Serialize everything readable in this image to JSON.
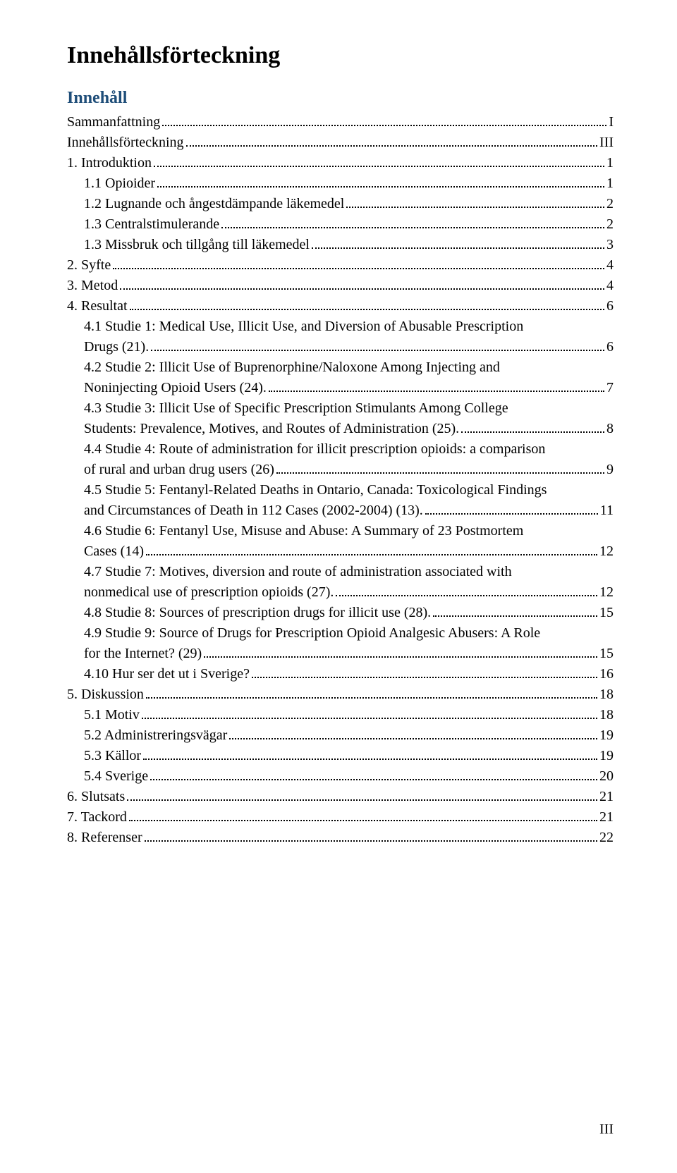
{
  "title": "Innehållsförteckning",
  "section_heading": "Innehåll",
  "page_number": "III",
  "toc": [
    {
      "label": "Sammanfattning",
      "page": "I",
      "indent": 0
    },
    {
      "label": "Innehållsförteckning",
      "page": "III",
      "indent": 0
    },
    {
      "label": "1. Introduktion",
      "page": "1",
      "indent": 0
    },
    {
      "label": "1.1 Opioider",
      "page": "1",
      "indent": 1
    },
    {
      "label": "1.2 Lugnande och ångestdämpande läkemedel",
      "page": "2",
      "indent": 1
    },
    {
      "label": "1.3 Centralstimulerande",
      "page": "2",
      "indent": 1
    },
    {
      "label": "1.3 Missbruk och tillgång till läkemedel",
      "page": "3",
      "indent": 1
    },
    {
      "label": "2. Syfte",
      "page": "4",
      "indent": 0
    },
    {
      "label": "3. Metod",
      "page": "4",
      "indent": 0
    },
    {
      "label": "4. Resultat",
      "page": "6",
      "indent": 0
    },
    {
      "label_lines": [
        "4.1 Studie 1: Medical Use, Illicit Use, and Diversion of Abusable Prescription"
      ],
      "cont": "Drugs (21).",
      "page": "6",
      "indent": 1
    },
    {
      "label_lines": [
        "4.2 Studie 2: Illicit Use of Buprenorphine/Naloxone Among Injecting and"
      ],
      "cont": "Noninjecting Opioid Users (24).",
      "page": "7",
      "indent": 1
    },
    {
      "label_lines": [
        "4.3 Studie 3: Illicit Use of Specific Prescription Stimulants Among College"
      ],
      "cont": "Students: Prevalence, Motives, and Routes of Administration (25).",
      "page": "8",
      "indent": 1
    },
    {
      "label_lines": [
        "4.4 Studie 4: Route of administration for illicit prescription opioids: a comparison"
      ],
      "cont": "of rural and urban drug users (26)",
      "page": "9",
      "indent": 1
    },
    {
      "label_lines": [
        "4.5  Studie 5: Fentanyl-Related Deaths in Ontario, Canada: Toxicological Findings"
      ],
      "cont": "and Circumstances of Death in 112 Cases (2002-2004) (13).",
      "page": "11",
      "indent": 1
    },
    {
      "label_lines": [
        "4.6 Studie 6: Fentanyl Use, Misuse and Abuse: A Summary of 23 Postmortem"
      ],
      "cont": "Cases (14)",
      "page": "12",
      "indent": 1
    },
    {
      "label_lines": [
        "4.7 Studie 7: Motives, diversion and route of administration associated with"
      ],
      "cont": "nonmedical use of prescription opioids (27).",
      "page": "12",
      "indent": 1
    },
    {
      "label": "4.8 Studie 8: Sources of prescription drugs for illicit use (28).",
      "page": "15",
      "indent": 1
    },
    {
      "label_lines": [
        "4.9  Studie 9: Source of Drugs for Prescription Opioid Analgesic Abusers: A Role"
      ],
      "cont": "for the Internet? (29)",
      "page": "15",
      "indent": 1
    },
    {
      "label": "4.10 Hur ser det ut i Sverige?",
      "page": "16",
      "indent": 1
    },
    {
      "label": "5. Diskussion",
      "page": "18",
      "indent": 0
    },
    {
      "label": "5.1 Motiv",
      "page": "18",
      "indent": 1
    },
    {
      "label": "5.2 Administreringsvägar",
      "page": "19",
      "indent": 1
    },
    {
      "label": "5.3 Källor",
      "page": "19",
      "indent": 1
    },
    {
      "label": "5.4 Sverige",
      "page": "20",
      "indent": 1
    },
    {
      "label": "6. Slutsats",
      "page": "21",
      "indent": 0
    },
    {
      "label": "7. Tackord",
      "page": "21",
      "indent": 0
    },
    {
      "label": "8. Referenser",
      "page": "22",
      "indent": 0
    }
  ]
}
